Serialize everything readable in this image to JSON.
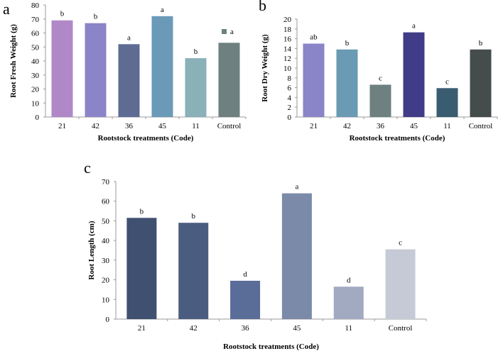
{
  "chart_data": [
    {
      "panel": "a",
      "type": "bar",
      "categories": [
        "21",
        "42",
        "36",
        "45",
        "11",
        "Control"
      ],
      "values": [
        69,
        67,
        52,
        72,
        42,
        53
      ],
      "letters": [
        "b",
        "b",
        "a",
        "a",
        "b",
        ""
      ],
      "colors": [
        "#B088C8",
        "#8B84C8",
        "#5E6C94",
        "#6A9AB8",
        "#8AB0B8",
        "#6E8080"
      ],
      "ylim": [
        0,
        80
      ],
      "yticks": [
        0,
        10,
        20,
        30,
        40,
        50,
        60,
        70,
        80
      ],
      "xlabel": "Rootstock treatments (Code)",
      "ylabel": "Root Fresh Weight (g)",
      "legend": {
        "label": "a",
        "color": "#6E8080",
        "placement": "top-right"
      }
    },
    {
      "panel": "b",
      "type": "bar",
      "categories": [
        "21",
        "42",
        "36",
        "45",
        "11",
        "Control"
      ],
      "values": [
        15,
        13.8,
        6.6,
        17.3,
        5.9,
        13.8
      ],
      "letters": [
        "ab",
        "b",
        "c",
        "a",
        "c",
        "b"
      ],
      "colors": [
        "#8A84C8",
        "#6A9AB4",
        "#6E8080",
        "#403C88",
        "#3A5C70",
        "#444C4C"
      ],
      "ylim": [
        0,
        20
      ],
      "yticks": [
        0,
        2,
        4,
        6,
        8,
        10,
        12,
        14,
        16,
        18,
        20
      ],
      "xlabel": "Rootstock treatments (Code)",
      "ylabel": "Root Dry Weight (g)"
    },
    {
      "panel": "c",
      "type": "bar",
      "categories": [
        "21",
        "42",
        "36",
        "45",
        "11",
        "Control"
      ],
      "values": [
        51.5,
        49,
        19.5,
        64,
        16.5,
        35.5
      ],
      "letters": [
        "b",
        "b",
        "d",
        "a",
        "d",
        "c"
      ],
      "colors": [
        "#3F5070",
        "#4A5C80",
        "#5A6C98",
        "#7C8AAA",
        "#A2AAC2",
        "#C6CAD6"
      ],
      "ylim": [
        0,
        70
      ],
      "yticks": [
        0,
        10,
        20,
        30,
        40,
        50,
        60,
        70
      ],
      "xlabel": "Rootstock treatments (Code)",
      "ylabel": "Root Length (cm)"
    }
  ]
}
